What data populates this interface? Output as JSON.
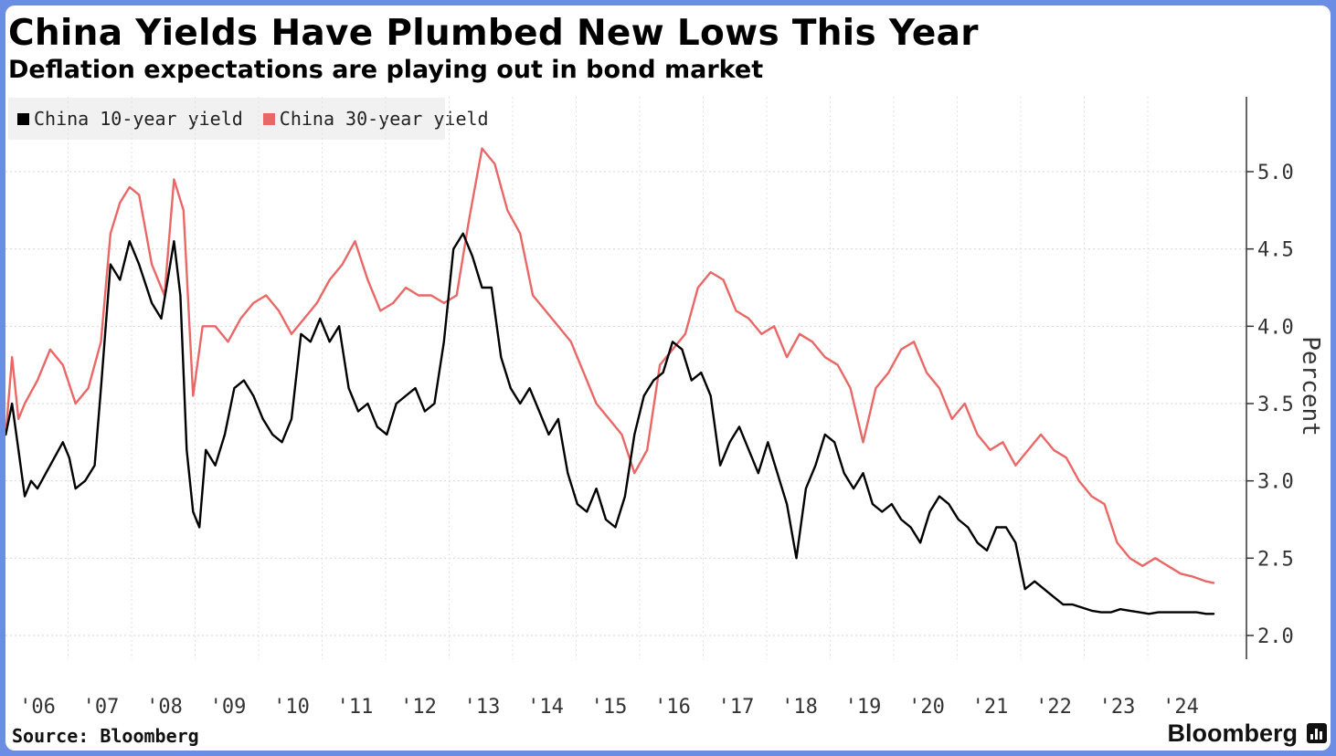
{
  "header": {
    "title": "China Yields Have Plumbed New Lows This Year",
    "subtitle": "Deflation expectations are playing out in bond market"
  },
  "legend": {
    "items": [
      {
        "label": "China 10-year yield",
        "color": "#000000"
      },
      {
        "label": "China 30-year yield",
        "color": "#ea6767"
      }
    ]
  },
  "footer": {
    "source": "Source: Bloomberg",
    "brand": "Bloomberg",
    "brand_icon": "bar-chart-icon"
  },
  "chart_data": {
    "type": "line",
    "title": "China Yields Have Plumbed New Lows This Year",
    "subtitle": "Deflation expectations are playing out in bond market",
    "xlabel": "",
    "ylabel": "Percent",
    "ylim": [
      1.9,
      5.5
    ],
    "yticks": [
      2.0,
      2.5,
      3.0,
      3.5,
      4.0,
      4.5,
      5.0
    ],
    "ytick_labels": [
      "2.0",
      "2.5",
      "3.0",
      "3.5",
      "4.0",
      "4.5",
      "5.0"
    ],
    "xlim": [
      2005.5,
      2024.6
    ],
    "xtick_labels": [
      "'06",
      "'07",
      "'08",
      "'09",
      "'10",
      "'11",
      "'12",
      "'13",
      "'14",
      "'15",
      "'16",
      "'17",
      "'18",
      "'19",
      "'20",
      "'21",
      "'22",
      "'23",
      "'24"
    ],
    "xtick_positions": [
      2006.0,
      2007.0,
      2008.0,
      2009.0,
      2010.0,
      2011.0,
      2012.0,
      2013.0,
      2014.0,
      2015.0,
      2016.0,
      2017.0,
      2018.0,
      2019.0,
      2020.0,
      2021.0,
      2022.0,
      2023.0,
      2024.0
    ],
    "grid": true,
    "legend_position": "top-left",
    "y_axis_side": "right",
    "series": [
      {
        "name": "China 10-year yield",
        "color": "#000000",
        "x": [
          2005.5,
          2005.6,
          2005.7,
          2005.8,
          2005.9,
          2006.0,
          2006.2,
          2006.4,
          2006.5,
          2006.6,
          2006.75,
          2006.9,
          2007.0,
          2007.15,
          2007.3,
          2007.45,
          2007.6,
          2007.8,
          2007.95,
          2008.05,
          2008.15,
          2008.25,
          2008.35,
          2008.45,
          2008.55,
          2008.65,
          2008.8,
          2008.95,
          2009.1,
          2009.25,
          2009.4,
          2009.55,
          2009.7,
          2009.85,
          2010.0,
          2010.15,
          2010.3,
          2010.45,
          2010.6,
          2010.75,
          2010.9,
          2011.05,
          2011.2,
          2011.35,
          2011.5,
          2011.65,
          2011.8,
          2011.95,
          2012.1,
          2012.25,
          2012.4,
          2012.55,
          2012.7,
          2012.85,
          2013.0,
          2013.15,
          2013.3,
          2013.45,
          2013.6,
          2013.75,
          2013.9,
          2014.05,
          2014.2,
          2014.35,
          2014.5,
          2014.65,
          2014.8,
          2014.95,
          2015.1,
          2015.25,
          2015.4,
          2015.55,
          2015.7,
          2015.85,
          2016.0,
          2016.15,
          2016.3,
          2016.45,
          2016.6,
          2016.75,
          2016.9,
          2017.05,
          2017.2,
          2017.35,
          2017.5,
          2017.65,
          2017.8,
          2017.95,
          2018.1,
          2018.25,
          2018.4,
          2018.55,
          2018.7,
          2018.85,
          2019.0,
          2019.15,
          2019.3,
          2019.45,
          2019.6,
          2019.75,
          2019.9,
          2020.05,
          2020.2,
          2020.35,
          2020.5,
          2020.65,
          2020.8,
          2020.95,
          2021.1,
          2021.25,
          2021.4,
          2021.55,
          2021.7,
          2021.85,
          2022.0,
          2022.15,
          2022.3,
          2022.45,
          2022.6,
          2022.75,
          2022.9,
          2023.05,
          2023.2,
          2023.35,
          2023.5,
          2023.65,
          2023.8,
          2023.95,
          2024.1,
          2024.25,
          2024.4,
          2024.52
        ],
        "values": [
          3.3,
          3.5,
          3.2,
          2.9,
          3.0,
          2.95,
          3.1,
          3.25,
          3.15,
          2.95,
          3.0,
          3.1,
          3.6,
          4.4,
          4.3,
          4.55,
          4.4,
          4.15,
          4.05,
          4.3,
          4.55,
          4.2,
          3.2,
          2.8,
          2.7,
          3.2,
          3.1,
          3.3,
          3.6,
          3.65,
          3.55,
          3.4,
          3.3,
          3.25,
          3.4,
          3.95,
          3.9,
          4.05,
          3.9,
          4.0,
          3.6,
          3.45,
          3.5,
          3.35,
          3.3,
          3.5,
          3.55,
          3.6,
          3.45,
          3.5,
          3.9,
          4.5,
          4.6,
          4.45,
          4.25,
          4.25,
          3.8,
          3.6,
          3.5,
          3.6,
          3.45,
          3.3,
          3.4,
          3.05,
          2.85,
          2.8,
          2.95,
          2.75,
          2.7,
          2.9,
          3.3,
          3.55,
          3.65,
          3.7,
          3.9,
          3.85,
          3.65,
          3.7,
          3.55,
          3.1,
          3.25,
          3.35,
          3.2,
          3.05,
          3.25,
          3.05,
          2.85,
          2.5,
          2.95,
          3.1,
          3.3,
          3.25,
          3.05,
          2.95,
          3.05,
          2.85,
          2.8,
          2.85,
          2.75,
          2.7,
          2.6,
          2.8,
          2.9,
          2.85,
          2.75,
          2.7,
          2.6,
          2.55,
          2.7,
          2.7,
          2.6,
          2.3,
          2.35,
          2.3,
          2.25,
          2.2,
          2.2,
          2.18,
          2.16,
          2.15,
          2.15,
          2.17,
          2.16,
          2.15,
          2.14,
          2.15,
          2.15,
          2.15,
          2.15,
          2.15,
          2.14,
          2.14
        ]
      },
      {
        "name": "China 30-year yield",
        "color": "#ea6767",
        "x": [
          2005.5,
          2005.6,
          2005.7,
          2005.8,
          2006.0,
          2006.2,
          2006.4,
          2006.6,
          2006.8,
          2007.0,
          2007.15,
          2007.3,
          2007.45,
          2007.6,
          2007.8,
          2008.0,
          2008.15,
          2008.3,
          2008.45,
          2008.6,
          2008.8,
          2009.0,
          2009.2,
          2009.4,
          2009.6,
          2009.8,
          2010.0,
          2010.2,
          2010.4,
          2010.6,
          2010.8,
          2011.0,
          2011.2,
          2011.4,
          2011.6,
          2011.8,
          2012.0,
          2012.2,
          2012.4,
          2012.6,
          2012.8,
          2013.0,
          2013.2,
          2013.4,
          2013.6,
          2013.8,
          2014.0,
          2014.2,
          2014.4,
          2014.6,
          2014.8,
          2015.0,
          2015.2,
          2015.4,
          2015.6,
          2015.8,
          2016.0,
          2016.2,
          2016.4,
          2016.6,
          2016.8,
          2017.0,
          2017.2,
          2017.4,
          2017.6,
          2017.8,
          2018.0,
          2018.2,
          2018.4,
          2018.6,
          2018.8,
          2019.0,
          2019.2,
          2019.4,
          2019.6,
          2019.8,
          2020.0,
          2020.2,
          2020.4,
          2020.6,
          2020.8,
          2021.0,
          2021.2,
          2021.4,
          2021.6,
          2021.8,
          2022.0,
          2022.2,
          2022.4,
          2022.6,
          2022.8,
          2023.0,
          2023.2,
          2023.4,
          2023.6,
          2023.8,
          2024.0,
          2024.2,
          2024.4,
          2024.52
        ],
        "values": [
          3.3,
          3.8,
          3.4,
          3.5,
          3.65,
          3.85,
          3.75,
          3.5,
          3.6,
          3.9,
          4.6,
          4.8,
          4.9,
          4.85,
          4.4,
          4.2,
          4.95,
          4.75,
          3.55,
          4.0,
          4.0,
          3.9,
          4.05,
          4.15,
          4.2,
          4.1,
          3.95,
          4.05,
          4.15,
          4.3,
          4.4,
          4.55,
          4.3,
          4.1,
          4.15,
          4.25,
          4.2,
          4.2,
          4.15,
          4.2,
          4.7,
          5.15,
          5.05,
          4.75,
          4.6,
          4.2,
          4.1,
          4.0,
          3.9,
          3.7,
          3.5,
          3.4,
          3.3,
          3.05,
          3.2,
          3.75,
          3.85,
          3.95,
          4.25,
          4.35,
          4.3,
          4.1,
          4.05,
          3.95,
          4.0,
          3.8,
          3.95,
          3.9,
          3.8,
          3.75,
          3.6,
          3.25,
          3.6,
          3.7,
          3.85,
          3.9,
          3.7,
          3.6,
          3.4,
          3.5,
          3.3,
          3.2,
          3.25,
          3.1,
          3.2,
          3.3,
          3.2,
          3.15,
          3.0,
          2.9,
          2.85,
          2.6,
          2.5,
          2.45,
          2.5,
          2.45,
          2.4,
          2.38,
          2.35,
          2.34
        ]
      }
    ]
  }
}
